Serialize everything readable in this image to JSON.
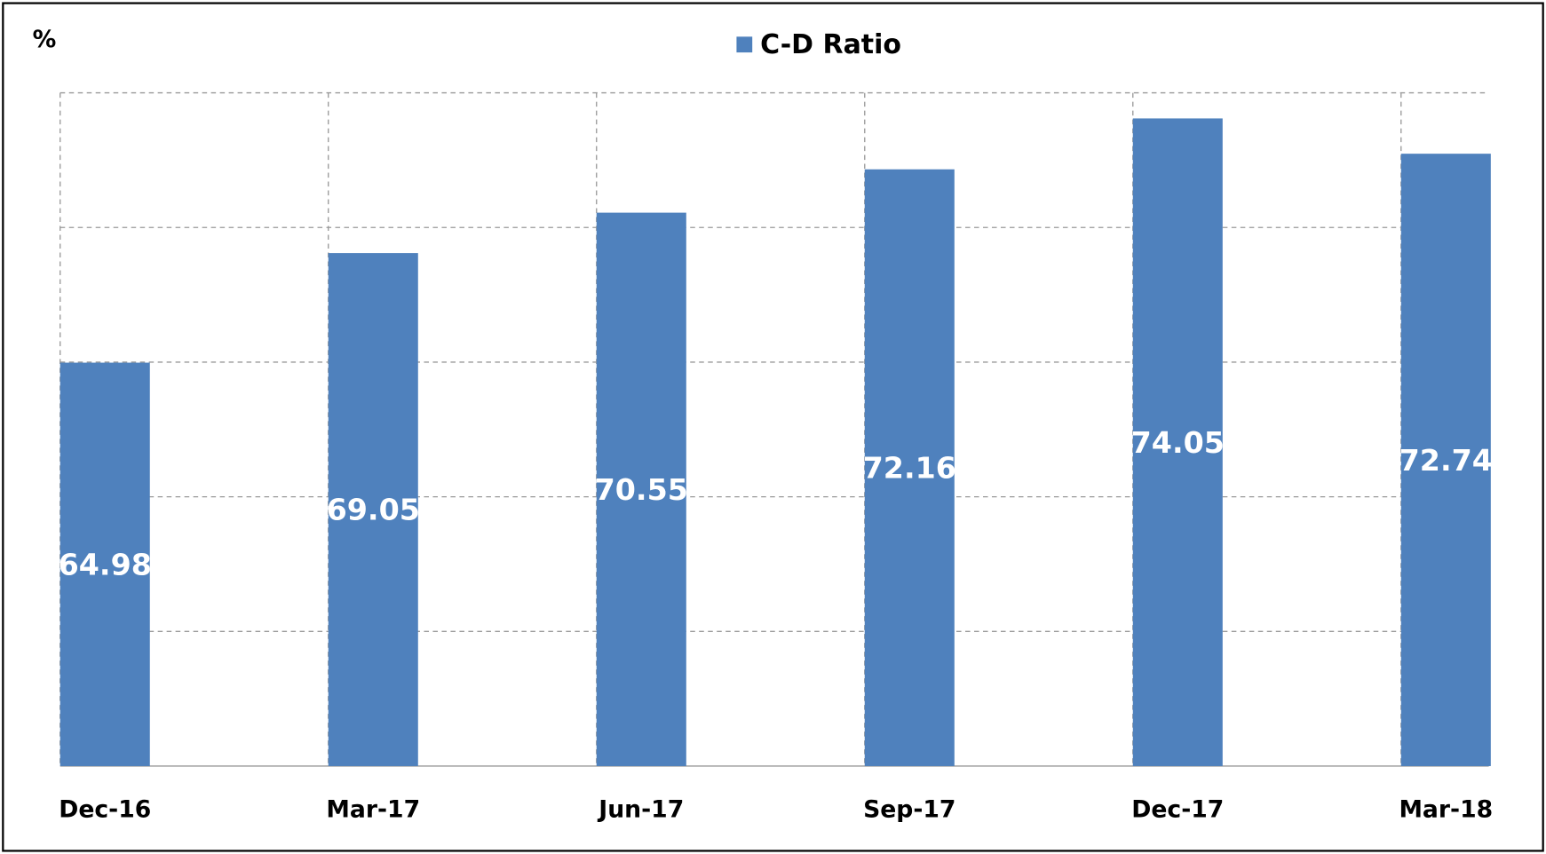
{
  "chart_data": {
    "type": "bar",
    "y_label": "%",
    "categories": [
      "Dec-16",
      "Mar-17",
      "Jun-17",
      "Sep-17",
      "Dec-17",
      "Mar-18"
    ],
    "series": [
      {
        "name": "C-D Ratio",
        "color": "#4f81bd",
        "values": [
          64.98,
          69.05,
          70.55,
          72.16,
          74.05,
          72.74
        ]
      }
    ],
    "ylim": [
      50,
      75
    ],
    "yticks": [
      50,
      55,
      60,
      65,
      70,
      75
    ],
    "grid": true,
    "legend": "top"
  }
}
